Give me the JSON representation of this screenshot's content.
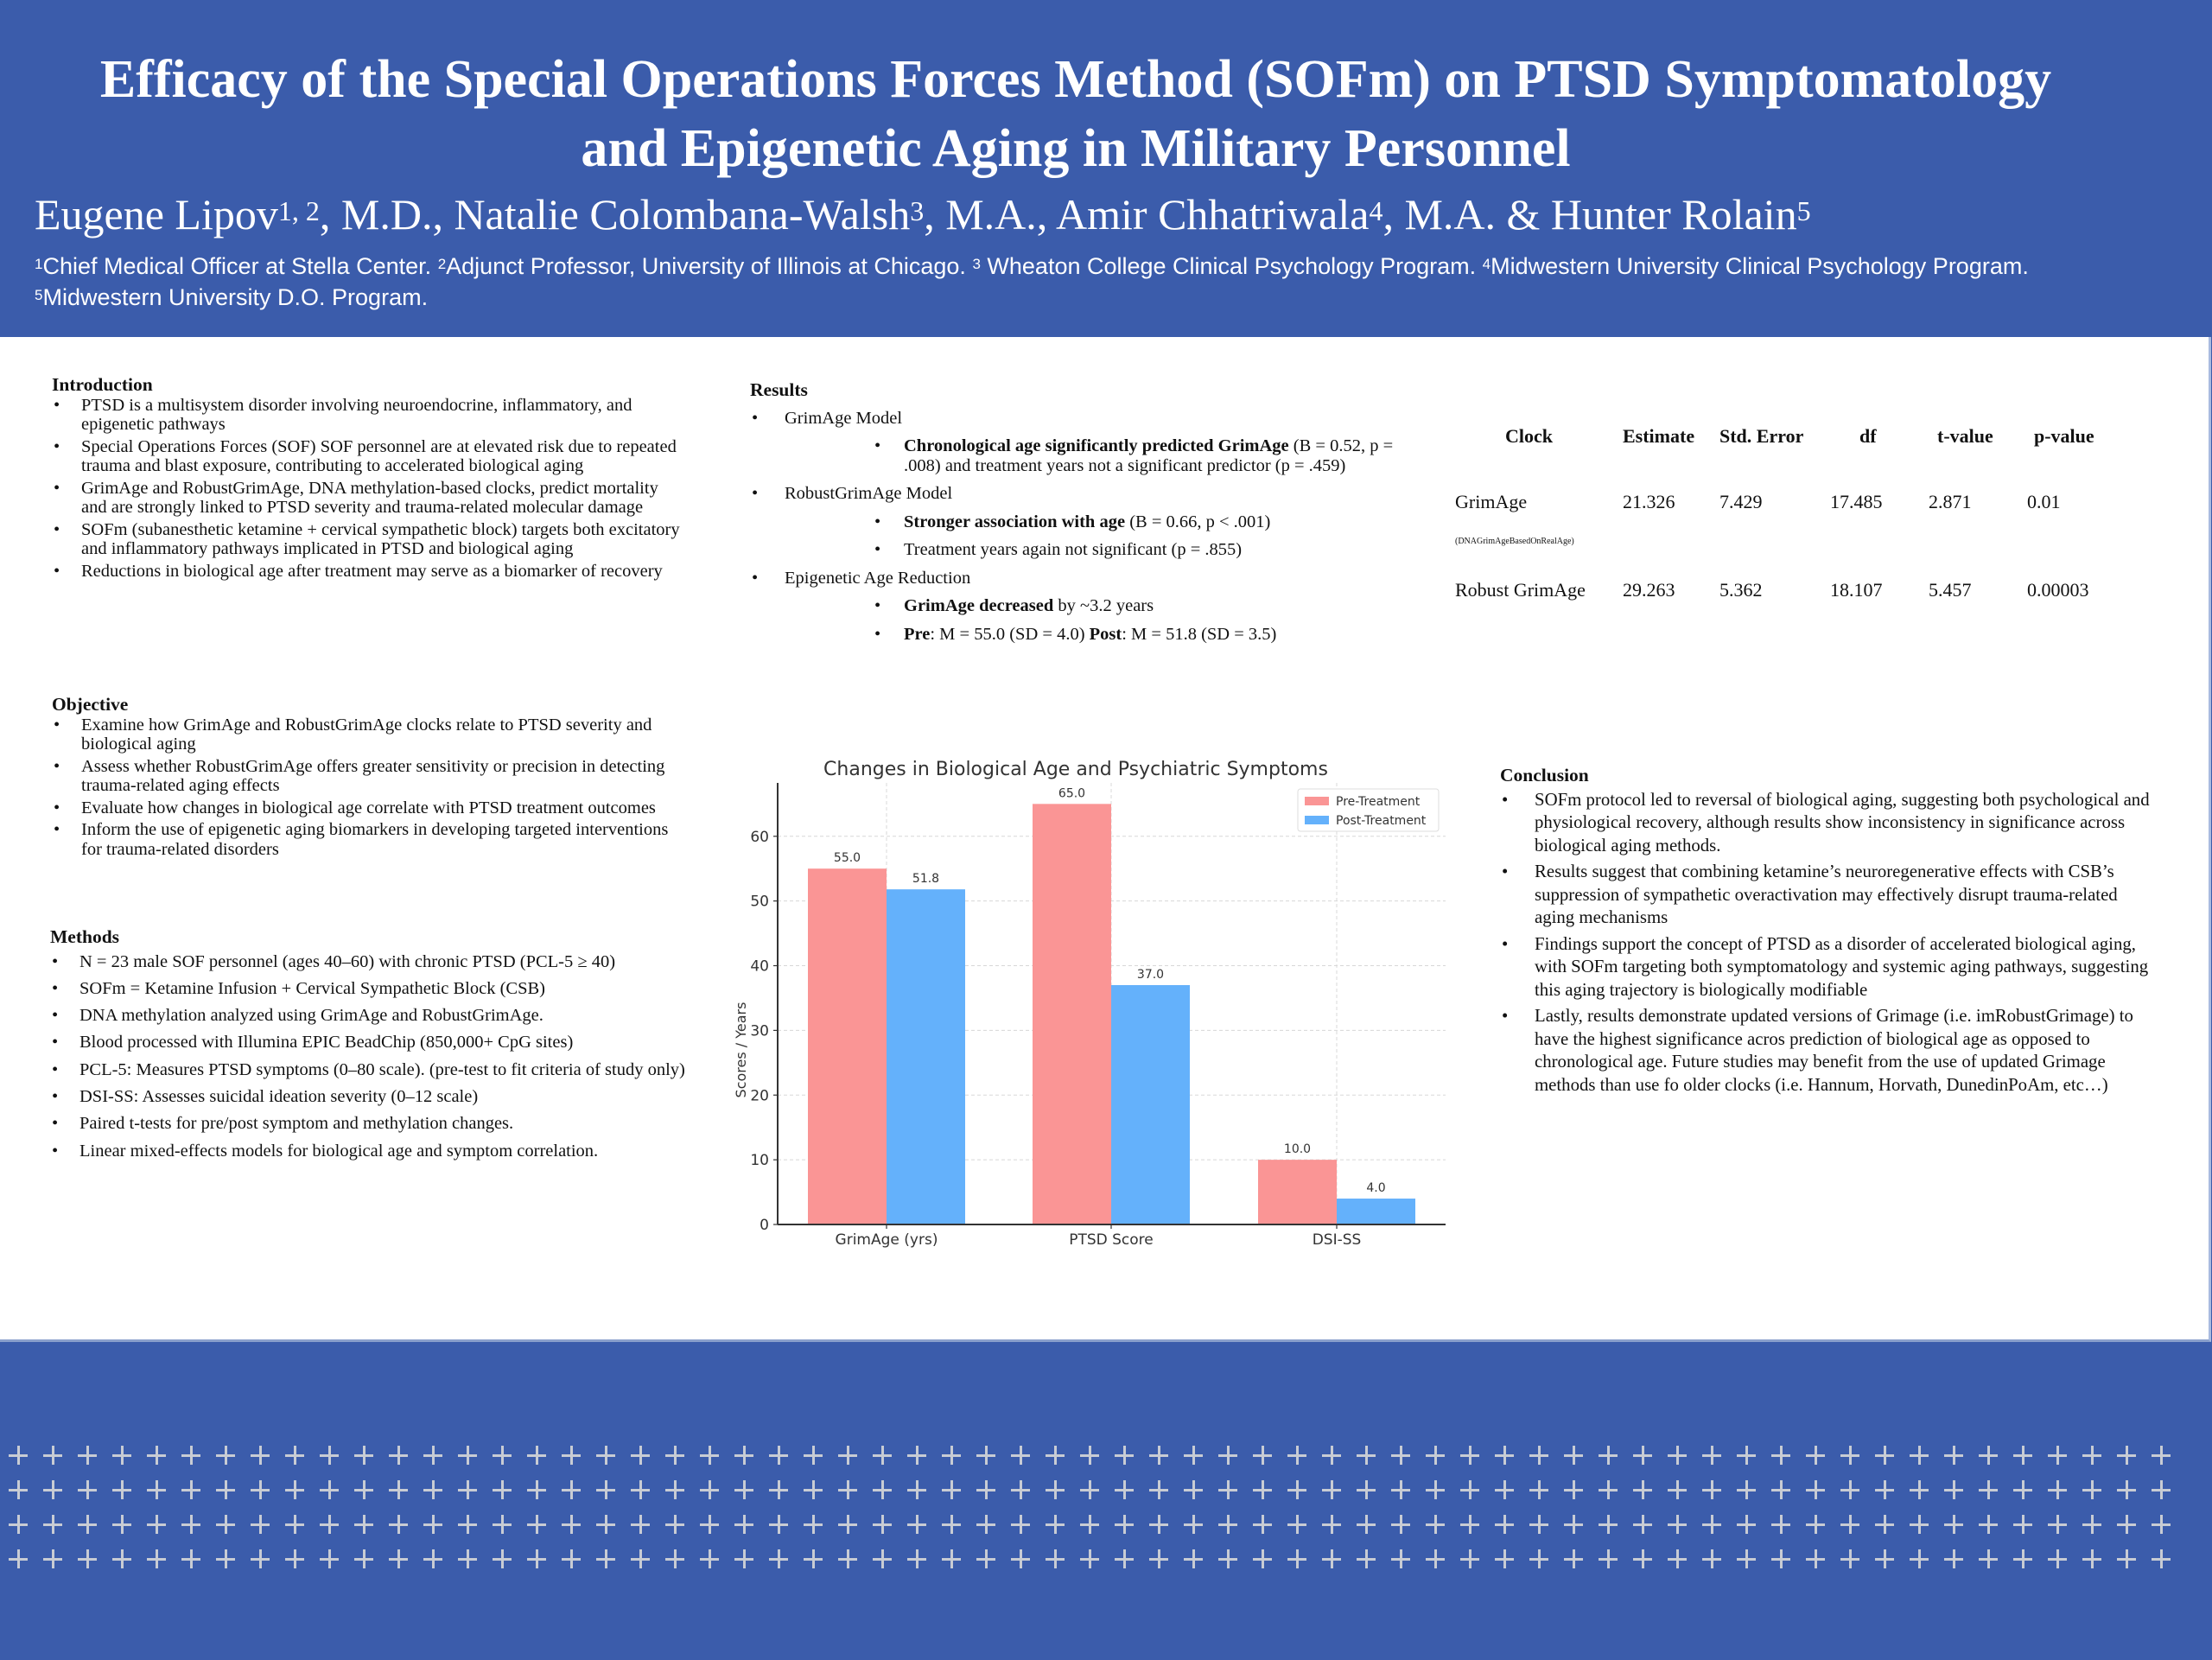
{
  "header": {
    "title_line1": "Efficacy of the Special Operations Forces Method (SOFm) on PTSD Symptomatology",
    "title_line2": "and Epigenetic Aging in Military Personnel",
    "authors": [
      {
        "name": "Eugene Lipov",
        "sup": "1, 2",
        "suffix": ", M.D., "
      },
      {
        "name": "Natalie Colombana-Walsh",
        "sup": "3",
        "suffix": ", M.A., "
      },
      {
        "name": "Amir Chhatriwala",
        "sup": "4",
        "suffix": ", M.A. & "
      },
      {
        "name": "Hunter Rolain",
        "sup": "5",
        "suffix": ""
      }
    ],
    "affiliations": [
      {
        "sup": "1",
        "text": "Chief Medical Officer at Stella Center. "
      },
      {
        "sup": "2",
        "text": "Adjunct Professor, University of Illinois at Chicago. "
      },
      {
        "sup": "3",
        "text": " Wheaton College Clinical Psychology Program. "
      },
      {
        "sup": "4",
        "text": "Midwestern University Clinical Psychology Program. "
      },
      {
        "sup": "5",
        "text": "Midwestern University D.O. Program."
      }
    ]
  },
  "introduction": {
    "heading": "Introduction",
    "items": [
      "PTSD is a multisystem disorder involving neuroendocrine, inflammatory, and epigenetic pathways",
      "Special Operations Forces (SOF) SOF personnel are at elevated risk due to repeated trauma and blast exposure, contributing to accelerated biological aging",
      "GrimAge and RobustGrimAge, DNA methylation-based clocks, predict mortality and are strongly linked to PTSD severity and trauma-related molecular damage",
      "SOFm (subanesthetic ketamine + cervical sympathetic block) targets both excitatory and inflammatory pathways implicated in PTSD and biological aging",
      "Reductions in biological age after treatment may serve as a biomarker of recovery"
    ]
  },
  "objective": {
    "heading": "Objective",
    "items": [
      "Examine how GrimAge and RobustGrimAge clocks relate to PTSD severity and biological aging",
      "Assess whether RobustGrimAge offers greater sensitivity or precision in detecting trauma-related aging effects",
      "Evaluate how changes in biological age correlate with PTSD treatment outcomes",
      "Inform the use of epigenetic aging biomarkers in developing targeted interventions for trauma-related disorders"
    ]
  },
  "methods": {
    "heading": "Methods",
    "items": [
      "N = 23 male SOF personnel (ages 40–60) with chronic PTSD (PCL-5 ≥ 40)",
      "SOFm = Ketamine Infusion + Cervical Sympathetic Block (CSB)",
      "DNA methylation analyzed using GrimAge and RobustGrimAge.",
      "Blood processed with Illumina EPIC BeadChip (850,000+ CpG sites)",
      "PCL-5: Measures PTSD symptoms (0–80 scale). (pre-test to fit criteria of study only)",
      "DSI-SS: Assesses suicidal ideation severity (0–12 scale)",
      "Paired t-tests for pre/post symptom and methylation changes.",
      "Linear mixed-effects models for biological age and symptom correlation."
    ]
  },
  "results": {
    "heading": "Results",
    "grimage_model": "GrimAge Model",
    "grimage_bold": "Chronological age significantly predicted GrimAge",
    "grimage_rest": " (B = 0.52, p = .008) and treatment years not a significant predictor (p = .459)",
    "robust_model": "RobustGrimAge Model",
    "robust_bold": "Stronger association with age",
    "robust_rest": " (B = 0.66, p < .001)",
    "robust_item2": "Treatment years again not significant (p = .855)",
    "epi_heading": "Epigenetic Age Reduction",
    "epi_bold": "GrimAge decreased",
    "epi_rest": " by ~3.2 years",
    "pre_label": "Pre",
    "pre_rest": ": M = 55.0 (SD = 4.0) ",
    "post_label": "Post",
    "post_rest": ": M = 51.8 (SD = 3.5)"
  },
  "table": {
    "headers": [
      "Clock",
      "Estimate",
      "Std. Error",
      "df",
      "t-value",
      "p-value"
    ],
    "rows": [
      {
        "clock": "GrimAge",
        "sub": "(DNAGrimAgeBasedOnRealAge)",
        "estimate": "21.326",
        "se": "7.429",
        "df": "17.485",
        "t": "2.871",
        "p": "0.01"
      },
      {
        "clock": "Robust GrimAge",
        "sub": "",
        "estimate": "29.263",
        "se": "5.362",
        "df": "18.107",
        "t": "5.457",
        "p": "0.00003"
      }
    ]
  },
  "conclusion": {
    "heading": "Conclusion",
    "items": [
      "SOFm protocol led to reversal of biological aging, suggesting both psychological and physiological recovery, although results show inconsistency in significance across biological aging methods.",
      "Results suggest that combining ketamine’s neuroregenerative effects with CSB’s suppression of sympathetic overactivation may effectively disrupt trauma-related aging mechanisms",
      "Findings support the concept of PTSD as a disorder of accelerated biological aging, with SOFm targeting both symptomatology and systemic aging pathways, suggesting this aging trajectory is biologically modifiable",
      "Lastly, results demonstrate updated versions of Grimage (i.e. imRobustGrimage) to have the highest significance acros prediction of biological age as opposed to chronological age. Future studies may benefit from the use of updated Grimage methods than use fo older clocks (i.e. Hannum, Horvath, DunedinPoAm, etc…)"
    ]
  },
  "colors": {
    "brand_blue": "#3b5cab",
    "pre": "#fa9595",
    "post": "#64b1fb"
  },
  "chart_data": {
    "type": "bar",
    "title": "Changes in Biological Age and Psychiatric Symptoms",
    "xlabel": "",
    "ylabel": "Scores / Years",
    "categories": [
      "GrimAge (yrs)",
      "PTSD Score",
      "DSI-SS"
    ],
    "series": [
      {
        "name": "Pre-Treatment",
        "values": [
          55.0,
          65.0,
          10.0
        ],
        "labels": [
          "55.0",
          "65.0",
          "10.0"
        ]
      },
      {
        "name": "Post-Treatment",
        "values": [
          51.8,
          37.0,
          4.0
        ],
        "labels": [
          "51.8",
          "37.0",
          "4.0"
        ]
      }
    ],
    "yticks": [
      0,
      10,
      20,
      30,
      40,
      50,
      60
    ],
    "ylim": [
      0,
      68.25
    ],
    "grid": true,
    "legend": "top-right"
  }
}
